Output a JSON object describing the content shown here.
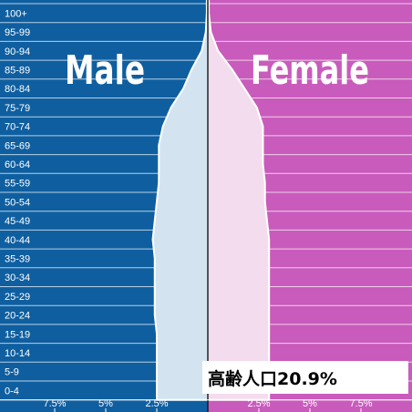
{
  "chart_data": {
    "type": "population-pyramid",
    "age_groups": [
      "0-4",
      "5-9",
      "10-14",
      "15-19",
      "20-24",
      "25-29",
      "30-34",
      "35-39",
      "40-44",
      "45-49",
      "50-54",
      "55-59",
      "60-64",
      "65-69",
      "70-74",
      "75-79",
      "80-84",
      "85-89",
      "90-94",
      "95-99",
      "100+"
    ],
    "series": [
      {
        "name": "Male",
        "values": [
          2.5,
          2.5,
          2.5,
          2.5,
          2.6,
          2.6,
          2.6,
          2.6,
          2.7,
          2.6,
          2.5,
          2.4,
          2.4,
          2.4,
          2.2,
          1.8,
          1.2,
          0.8,
          0.3,
          0.1,
          0.05
        ]
      },
      {
        "name": "Female",
        "values": [
          3.0,
          3.0,
          3.0,
          3.0,
          3.0,
          3.0,
          3.0,
          3.0,
          3.0,
          2.9,
          2.8,
          2.8,
          2.7,
          2.7,
          2.7,
          2.4,
          1.8,
          1.2,
          0.5,
          0.15,
          0.05
        ]
      }
    ],
    "x_ticks_left": [
      "7.5%",
      "5%",
      "2.5%"
    ],
    "x_tick_values_left": [
      7.5,
      5,
      2.5
    ],
    "x_ticks_right": [
      "2.5%",
      "5%",
      "7.5%"
    ],
    "x_tick_values_right": [
      2.5,
      5,
      7.5
    ],
    "xlim": [
      0,
      10
    ],
    "grid": true
  },
  "annotation": "高齢人口20.9%",
  "colors": {
    "male_bg": "#0f5fa0",
    "female_bg": "#c95bbc",
    "male_fill": "#d3e4f0",
    "female_fill": "#f4dcef",
    "grid": "#ffffff"
  }
}
